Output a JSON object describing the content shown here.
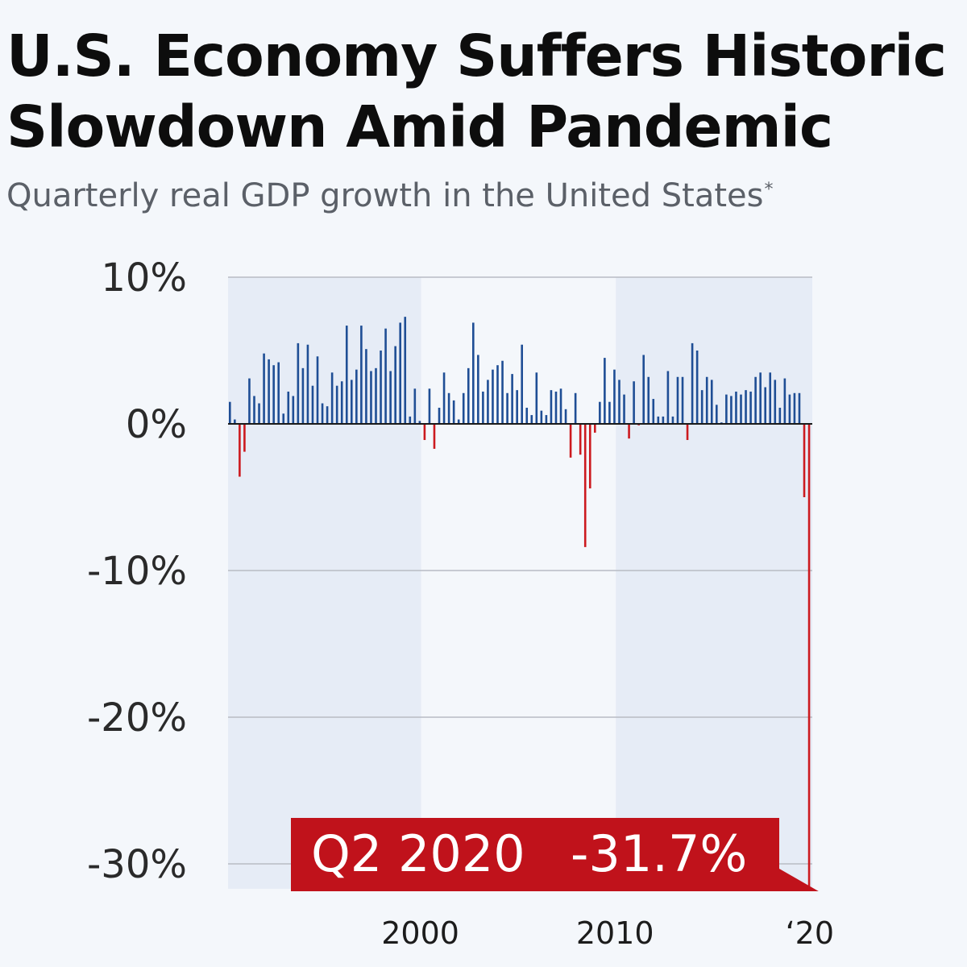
{
  "title": "U.S. Economy Suffers Historic Slowdown Amid Pandemic",
  "subtitle": "Quarterly real GDP growth in the United States",
  "subtitle_marker": "*",
  "colors": {
    "positive": "#1f4e95",
    "negative": "#cc1a1f",
    "band": "#e6ecf6",
    "background": "#f4f7fb",
    "grid": "#b8bcc4",
    "callout": "#c0121b"
  },
  "chart_data": {
    "type": "bar",
    "title": "U.S. Economy Suffers Historic Slowdown Amid Pandemic",
    "subtitle": "Quarterly real GDP growth in the United States",
    "xlabel": "",
    "ylabel": "",
    "x_start": "Q1 1990",
    "ylim": [
      -31.7,
      10
    ],
    "yticks": [
      10,
      0,
      -10,
      -20,
      -30
    ],
    "ytick_labels": [
      "10%",
      "0%",
      "-10%",
      "-20%",
      "-30%"
    ],
    "xtick_labels": [
      {
        "label": "2000",
        "quarter": "Q1 2000"
      },
      {
        "label": "2010",
        "quarter": "Q1 2010"
      },
      {
        "label": "‘20",
        "quarter": "Q1 2020"
      }
    ],
    "grid": true,
    "annotation": {
      "label": "Q2 2020",
      "value": "-31.7%",
      "quarter": "Q2 2020"
    },
    "values": [
      1.5,
      0.3,
      -3.6,
      -1.9,
      3.1,
      1.9,
      1.4,
      4.8,
      4.4,
      4.0,
      4.2,
      0.7,
      2.2,
      1.9,
      5.5,
      3.8,
      5.4,
      2.6,
      4.6,
      1.4,
      1.2,
      3.5,
      2.6,
      2.9,
      6.7,
      3.0,
      3.7,
      6.7,
      5.1,
      3.6,
      3.8,
      5.0,
      6.5,
      3.6,
      5.3,
      6.9,
      7.3,
      0.5,
      2.4,
      0.2,
      -1.1,
      2.4,
      -1.7,
      1.1,
      3.5,
      2.1,
      1.6,
      0.3,
      2.1,
      3.8,
      6.9,
      4.7,
      2.2,
      3.0,
      3.7,
      4.0,
      4.3,
      2.1,
      3.4,
      2.3,
      5.4,
      1.1,
      0.6,
      3.5,
      0.9,
      0.6,
      2.3,
      2.2,
      2.4,
      1.0,
      -2.3,
      2.1,
      -2.1,
      -8.4,
      -4.4,
      -0.6,
      1.5,
      4.5,
      1.5,
      3.7,
      3.0,
      2.0,
      -1.0,
      2.9,
      -0.1,
      4.7,
      3.2,
      1.7,
      0.5,
      0.5,
      3.6,
      0.5,
      3.2,
      3.2,
      -1.1,
      5.5,
      5.0,
      2.3,
      3.2,
      3.0,
      1.3,
      0.1,
      2.0,
      1.9,
      2.2,
      2.0,
      2.3,
      2.2,
      3.2,
      3.5,
      2.5,
      3.5,
      3.0,
      1.1,
      3.1,
      2.0,
      2.1,
      2.1,
      -5.0,
      -31.7
    ]
  }
}
